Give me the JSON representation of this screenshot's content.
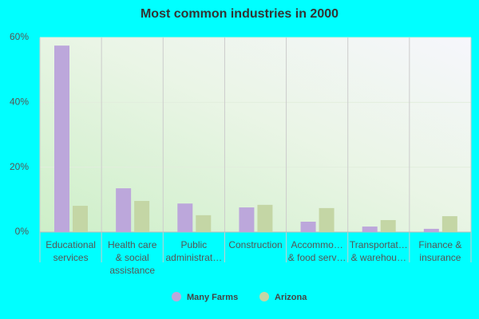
{
  "chart_data": {
    "type": "bar",
    "title": "Most common industries in 2000",
    "categories": [
      [
        "Educational",
        "services"
      ],
      [
        "Health care",
        "& social",
        "assistance"
      ],
      [
        "Public",
        "administrat…"
      ],
      [
        "Construction"
      ],
      [
        "Accommo…",
        "& food serv…"
      ],
      [
        "Transportat…",
        "& warehou…"
      ],
      [
        "Finance &",
        "insurance"
      ]
    ],
    "series": [
      {
        "name": "Many Farms",
        "color": "#bca7db",
        "values": [
          57.5,
          13.5,
          8.8,
          7.6,
          3.2,
          1.7,
          1.0
        ]
      },
      {
        "name": "Arizona",
        "color": "#c4d6a5",
        "values": [
          8.1,
          9.6,
          5.2,
          8.4,
          7.4,
          3.7,
          4.9
        ]
      }
    ],
    "ylim": [
      0,
      60
    ],
    "yticks": [
      {
        "value": 0,
        "label": "0%"
      },
      {
        "value": 20,
        "label": "20%"
      },
      {
        "value": 40,
        "label": "40%"
      },
      {
        "value": 60,
        "label": "60%"
      }
    ],
    "grid": true
  }
}
